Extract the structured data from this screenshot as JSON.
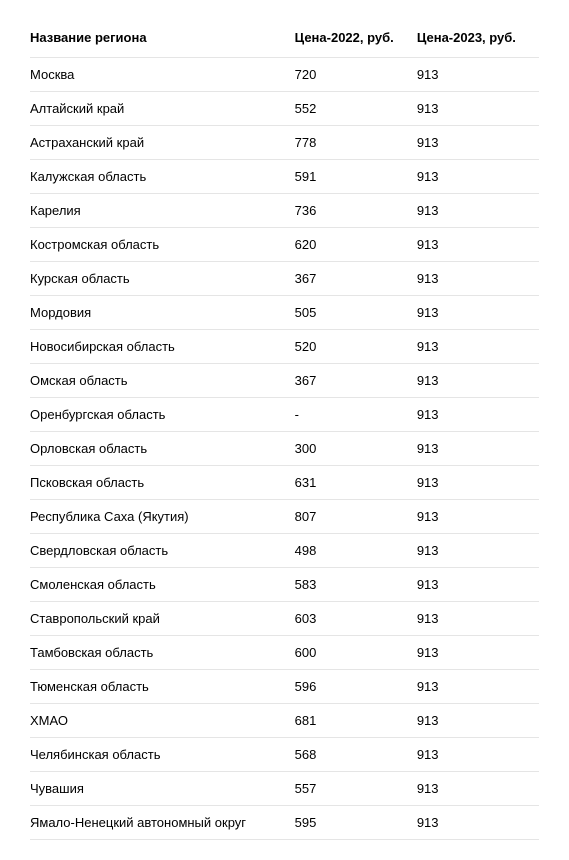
{
  "table": {
    "columns": [
      "Название региона",
      "Цена-2022, руб.",
      "Цена-2023, руб."
    ],
    "rows": [
      [
        "Москва",
        "720",
        "913"
      ],
      [
        "Алтайский край",
        "552",
        "913"
      ],
      [
        "Астраханский край",
        "778",
        "913"
      ],
      [
        "Калужская область",
        "591",
        "913"
      ],
      [
        "Карелия",
        "736",
        "913"
      ],
      [
        "Костромская область",
        "620",
        "913"
      ],
      [
        "Курская область",
        "367",
        "913"
      ],
      [
        "Мордовия",
        "505",
        "913"
      ],
      [
        "Новосибирская область",
        "520",
        "913"
      ],
      [
        "Омская область",
        "367",
        "913"
      ],
      [
        "Оренбургская область",
        "-",
        "913"
      ],
      [
        "Орловская область",
        "300",
        "913"
      ],
      [
        "Псковская область",
        "631",
        "913"
      ],
      [
        "Республика Саха (Якутия)",
        "807",
        "913"
      ],
      [
        "Свердловская область",
        "498",
        "913"
      ],
      [
        "Смоленская область",
        "583",
        "913"
      ],
      [
        "Ставропольский край",
        "603",
        "913"
      ],
      [
        "Тамбовская область",
        "600",
        "913"
      ],
      [
        "Тюменская область",
        "596",
        "913"
      ],
      [
        "ХМАО",
        "681",
        "913"
      ],
      [
        "Челябинская область",
        "568",
        "913"
      ],
      [
        "Чувашия",
        "557",
        "913"
      ],
      [
        "Ямало-Ненецкий автономный округ",
        "595",
        "913"
      ]
    ],
    "header_fontsize": 13,
    "cell_fontsize": 13,
    "text_color": "#000000",
    "background_color": "#ffffff",
    "border_color": "#e5e5e5",
    "column_widths": [
      "52%",
      "24%",
      "24%"
    ]
  }
}
